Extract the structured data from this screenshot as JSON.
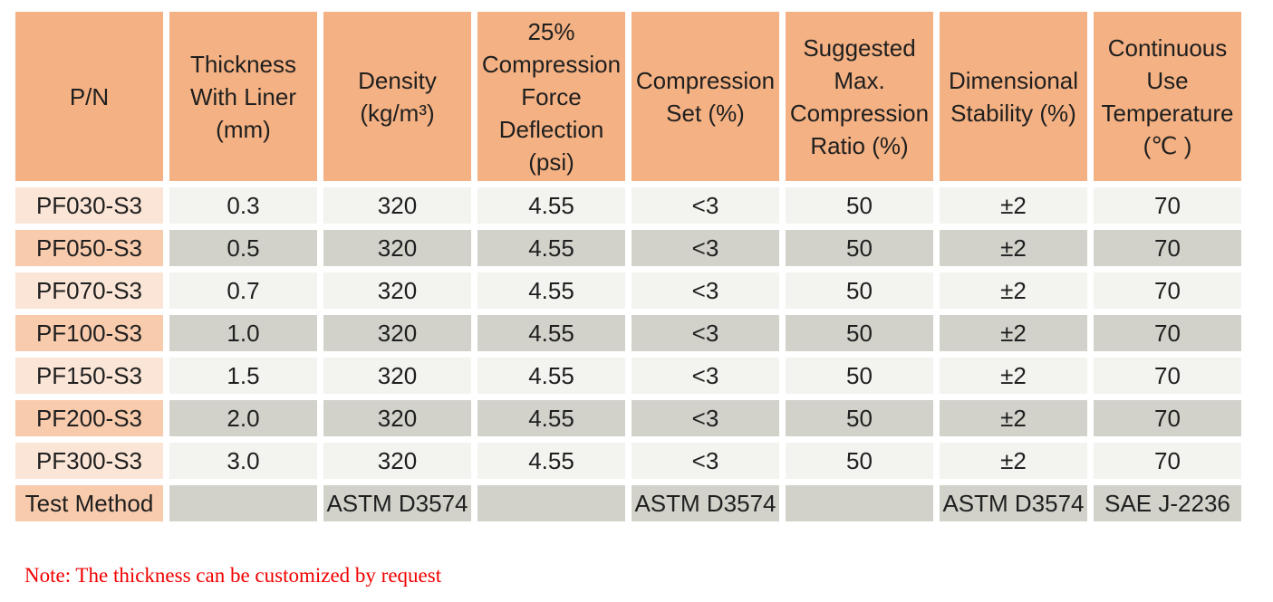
{
  "colors": {
    "header_bg": "#F4B183",
    "pn_odd_bg": "#FBE5D6",
    "pn_even_bg": "#F8CBAD",
    "cell_odd_bg": "#F3F3EF",
    "cell_even_bg": "#D2D2CB",
    "note_text": "#f20000",
    "table_text": "#1f1f1f",
    "page_bg": "#ffffff"
  },
  "table": {
    "columns": [
      "P/N",
      "Thickness\nWith Liner\n(mm)",
      "Density\n(kg/m³)",
      "25%\nCompression\nForce\nDeflection\n(psi)",
      "Compression\nSet (%)",
      "Suggested\nMax.\nCompression\nRatio (%)",
      "Dimensional\nStability (%)",
      "Continuous\nUse\nTemperature\n(℃ )"
    ],
    "rows": [
      {
        "pn": "PF030-S3",
        "values": [
          "0.3",
          "320",
          "4.55",
          "<3",
          "50",
          "±2",
          "70"
        ]
      },
      {
        "pn": "PF050-S3",
        "values": [
          "0.5",
          "320",
          "4.55",
          "<3",
          "50",
          "±2",
          "70"
        ]
      },
      {
        "pn": "PF070-S3",
        "values": [
          "0.7",
          "320",
          "4.55",
          "<3",
          "50",
          "±2",
          "70"
        ]
      },
      {
        "pn": "PF100-S3",
        "values": [
          "1.0",
          "320",
          "4.55",
          "<3",
          "50",
          "±2",
          "70"
        ]
      },
      {
        "pn": "PF150-S3",
        "values": [
          "1.5",
          "320",
          "4.55",
          "<3",
          "50",
          "±2",
          "70"
        ]
      },
      {
        "pn": "PF200-S3",
        "values": [
          "2.0",
          "320",
          "4.55",
          "<3",
          "50",
          "±2",
          "70"
        ]
      },
      {
        "pn": "PF300-S3",
        "values": [
          "3.0",
          "320",
          "4.55",
          "<3",
          "50",
          "±2",
          "70"
        ]
      }
    ],
    "test_method": {
      "label": "Test Method",
      "values": [
        "",
        "ASTM D3574",
        "",
        "ASTM D3574",
        "",
        "ASTM D3574",
        "SAE J-2236"
      ]
    }
  },
  "note": "Note: The thickness can be customized by request"
}
